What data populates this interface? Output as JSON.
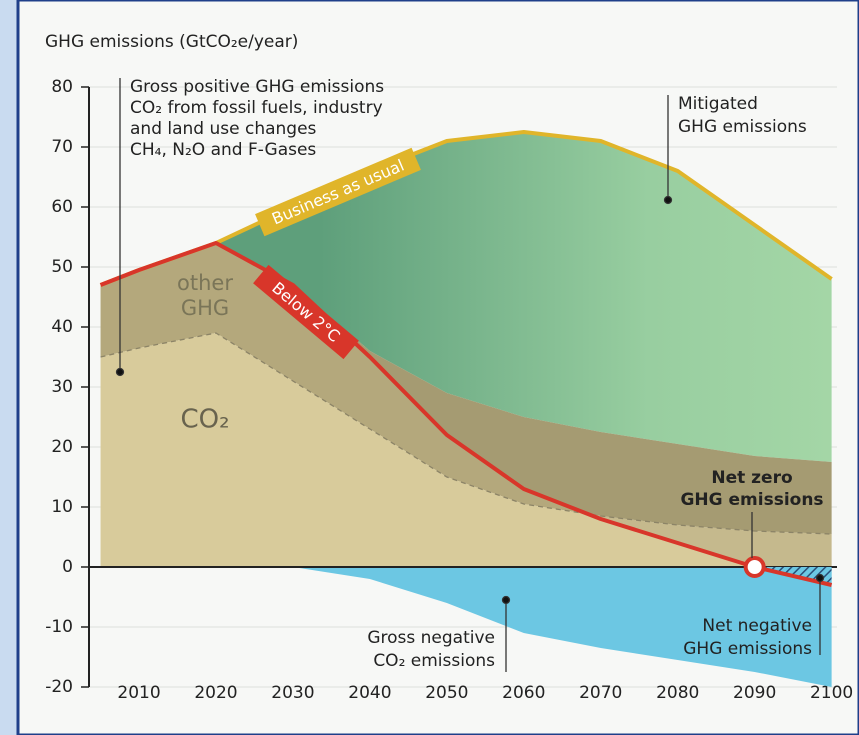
{
  "chart_data": {
    "type": "area",
    "title": "GHG emissions (GtCO₂e/year)",
    "x": [
      2005,
      2010,
      2020,
      2030,
      2040,
      2050,
      2060,
      2070,
      2080,
      2090,
      2100
    ],
    "xlim": [
      2003.5,
      2102
    ],
    "xticks": [
      2010,
      2020,
      2030,
      2040,
      2050,
      2060,
      2070,
      2080,
      2090,
      2100
    ],
    "ylim": [
      -20,
      80
    ],
    "yticks": [
      -20,
      -10,
      0,
      10,
      20,
      30,
      40,
      50,
      60,
      70,
      80
    ],
    "grid": true,
    "series": [
      {
        "name": "Business as usual",
        "color": "#e0b52a",
        "values": [
          47,
          49.5,
          54,
          60,
          66,
          71,
          72.5,
          71,
          66,
          57,
          48
        ]
      },
      {
        "name": "Below 2°C",
        "color": "#d8362a",
        "values": [
          47,
          49.5,
          54,
          47,
          35,
          22,
          13,
          8,
          4,
          0,
          -3
        ]
      }
    ],
    "areas": [
      {
        "color": "#6aa57e",
        "values": [
          47,
          49.5,
          54,
          47,
          36,
          29,
          25,
          22.5,
          20.5,
          18.5,
          17.5
        ]
      },
      {
        "color": "#b4a87c",
        "values": [
          35,
          36.5,
          39,
          31,
          23,
          15,
          10.5,
          8.5,
          7,
          6,
          5.5
        ]
      },
      {
        "color": "#6cc7e3",
        "values": [
          0,
          0,
          0,
          0,
          -2,
          -6,
          -11,
          -13.5,
          -15.5,
          -17.5,
          -20
        ]
      }
    ],
    "annotations": [
      {
        "lines": [
          "Gross positive GHG emissions",
          "CO₂ from fossil fuels, industry",
          "and land use changes",
          "CH₄, N₂O and F-Gases"
        ]
      },
      {
        "lines": [
          "Mitigated",
          "GHG emissions"
        ]
      },
      {
        "lines": [
          "other",
          "GHG"
        ]
      },
      {
        "lines": [
          "CO₂"
        ]
      },
      {
        "lines": [
          "Net zero",
          "GHG emissions"
        ]
      },
      {
        "lines": [
          "Gross negative",
          "CO₂ emissions"
        ]
      },
      {
        "lines": [
          "Net negative",
          "GHG emissions"
        ]
      }
    ]
  }
}
